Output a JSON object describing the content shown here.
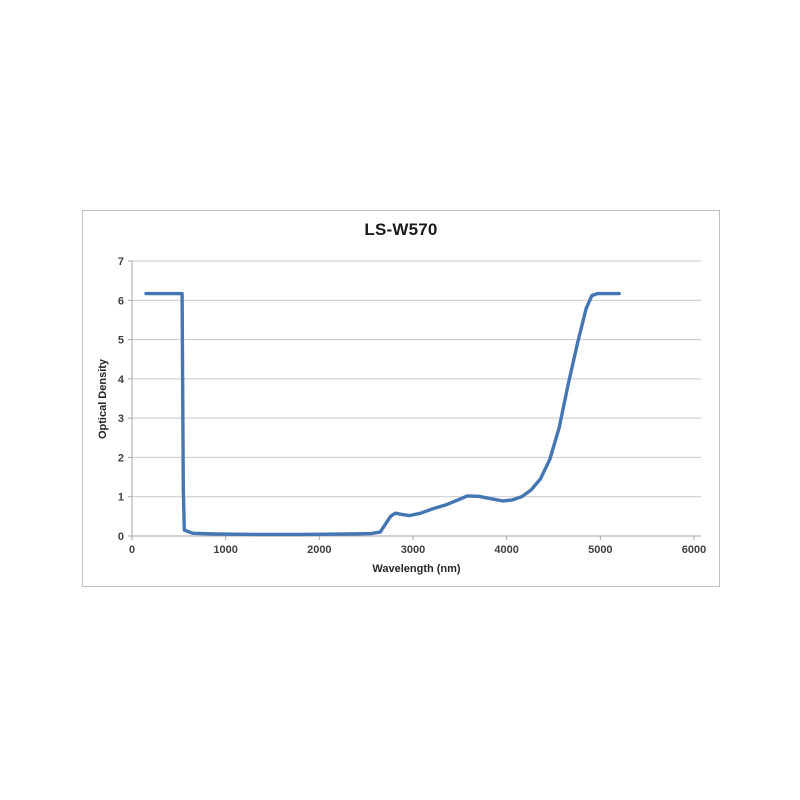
{
  "window": {
    "background": "#ffffff"
  },
  "chart": {
    "title": "LS-W570",
    "x_axis": {
      "label": "Wavelength (nm)",
      "tick_labels": [
        "0",
        "1000",
        "2000",
        "3000",
        "4000",
        "5000",
        "6000"
      ],
      "tick_values": [
        0,
        1000,
        2000,
        3000,
        4000,
        5000,
        6000
      ],
      "min": 0,
      "max": 6000
    },
    "y_axis": {
      "label": "Optical Density",
      "tick_labels": [
        "0",
        "1",
        "2",
        "3",
        "4",
        "5",
        "6",
        "7"
      ],
      "tick_values": [
        0,
        1,
        2,
        3,
        4,
        5,
        6,
        7
      ],
      "min": 0,
      "max": 7
    },
    "colors": {
      "line": "#4576B4",
      "grid": "#C9C9C9",
      "axis": "#A6A6A6",
      "tick_text": "#404040",
      "title_text": "#1A1A1A",
      "frame_border": "#C0C0C0",
      "background": "#FFFFFF"
    }
  },
  "chart_data": {
    "type": "line",
    "title": "LS-W570",
    "xlabel": "Wavelength (nm)",
    "ylabel": "Optical Density",
    "xlim": [
      0,
      6000
    ],
    "ylim": [
      0,
      7
    ],
    "grid": "horizontal-only",
    "legend": "none",
    "series": [
      {
        "name": "LS-W570",
        "color": "#4576B4",
        "x_unit": "nm",
        "y_unit": "OD",
        "points": [
          [
            150,
            6.17
          ],
          [
            520,
            6.17
          ],
          [
            535,
            6.17
          ],
          [
            548,
            1.2
          ],
          [
            558,
            0.15
          ],
          [
            650,
            0.07
          ],
          [
            900,
            0.05
          ],
          [
            1300,
            0.04
          ],
          [
            1800,
            0.04
          ],
          [
            2300,
            0.05
          ],
          [
            2550,
            0.06
          ],
          [
            2650,
            0.1
          ],
          [
            2700,
            0.28
          ],
          [
            2760,
            0.5
          ],
          [
            2810,
            0.58
          ],
          [
            2880,
            0.55
          ],
          [
            2960,
            0.52
          ],
          [
            3080,
            0.58
          ],
          [
            3220,
            0.7
          ],
          [
            3360,
            0.8
          ],
          [
            3480,
            0.92
          ],
          [
            3580,
            1.02
          ],
          [
            3700,
            1.01
          ],
          [
            3830,
            0.95
          ],
          [
            3960,
            0.89
          ],
          [
            4060,
            0.92
          ],
          [
            4160,
            1.0
          ],
          [
            4260,
            1.17
          ],
          [
            4360,
            1.45
          ],
          [
            4460,
            1.95
          ],
          [
            4560,
            2.75
          ],
          [
            4660,
            3.9
          ],
          [
            4760,
            4.95
          ],
          [
            4850,
            5.8
          ],
          [
            4910,
            6.12
          ],
          [
            4970,
            6.17
          ],
          [
            5200,
            6.17
          ]
        ]
      }
    ]
  }
}
